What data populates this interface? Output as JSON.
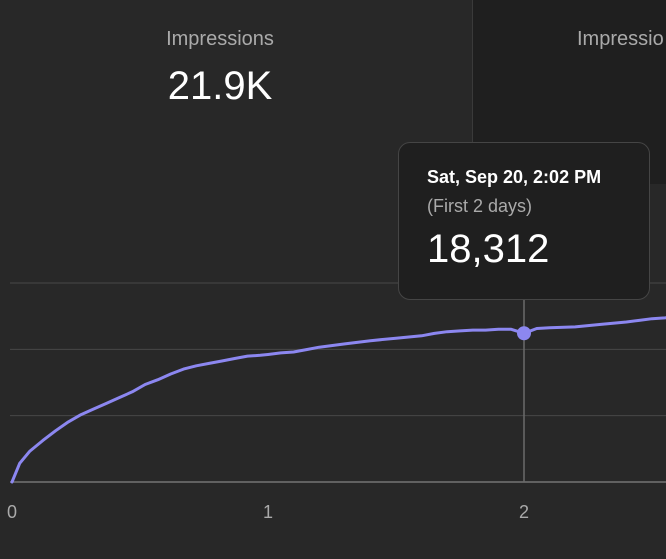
{
  "metrics": [
    {
      "label": "Impressions",
      "value": "21.9K"
    },
    {
      "label": "Impressio",
      "value": ""
    }
  ],
  "tooltip": {
    "date": "Sat, Sep 20, 2:02 PM",
    "subtitle": "(First 2 days)",
    "value": "18,312"
  },
  "colors": {
    "background": "#282828",
    "line": "#8c87f0",
    "grid": "#474747",
    "tooltip_bg": "#1f1f1f"
  },
  "chart_data": {
    "type": "line",
    "xlabel": "",
    "ylabel": "",
    "xlim": [
      0,
      2.6
    ],
    "ylim": [
      0,
      24500
    ],
    "grid": true,
    "y_gridlines": [
      8166,
      16333,
      24500
    ],
    "x_ticks": [
      {
        "value": 0,
        "label": "0"
      },
      {
        "value": 1,
        "label": "1"
      },
      {
        "value": 2,
        "label": "2"
      }
    ],
    "highlight": {
      "x": 2,
      "y": 18312
    },
    "series": [
      {
        "x": [
          0,
          0.03,
          0.07,
          0.12,
          0.17,
          0.22,
          0.27,
          0.32,
          0.37,
          0.42,
          0.47,
          0.52,
          0.57,
          0.62,
          0.67,
          0.72,
          0.77,
          0.82,
          0.87,
          0.92,
          0.97,
          1.0,
          1.05,
          1.1,
          1.15,
          1.2,
          1.3,
          1.4,
          1.5,
          1.6,
          1.65,
          1.7,
          1.75,
          1.8,
          1.85,
          1.9,
          1.95,
          2.0,
          2.05,
          2.1,
          2.2,
          2.3,
          2.4,
          2.45,
          2.5,
          2.55,
          2.6
        ],
        "y": [
          0,
          2300,
          3800,
          5100,
          6300,
          7400,
          8300,
          9000,
          9700,
          10400,
          11100,
          12000,
          12600,
          13300,
          13900,
          14300,
          14600,
          14900,
          15200,
          15500,
          15600,
          15700,
          15900,
          16000,
          16300,
          16600,
          17000,
          17400,
          17700,
          18000,
          18300,
          18500,
          18600,
          18700,
          18700,
          18800,
          18800,
          18312,
          18900,
          19000,
          19100,
          19400,
          19700,
          19900,
          20100,
          20200,
          20400
        ]
      }
    ]
  }
}
